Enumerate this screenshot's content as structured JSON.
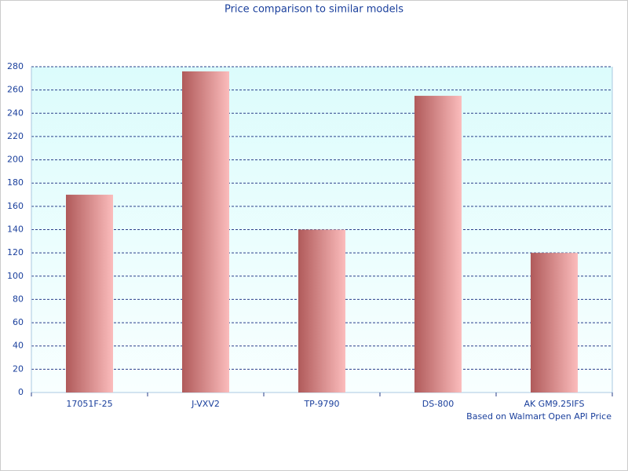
{
  "chart_data": {
    "type": "bar",
    "title": "Price comparison to similar models",
    "annotation": "Based on Walmart Open API Price",
    "categories": [
      "17051F-25",
      "J-VXV2",
      "TP-9790",
      "DS-800",
      "AK GM9.25IFS"
    ],
    "values": [
      170,
      276,
      140,
      255,
      120
    ],
    "color": "#b05a5a",
    "ylim": [
      0,
      280
    ],
    "yticks": [
      0,
      20,
      40,
      60,
      80,
      100,
      120,
      140,
      160,
      180,
      200,
      220,
      240,
      260,
      280
    ],
    "grid": true
  }
}
